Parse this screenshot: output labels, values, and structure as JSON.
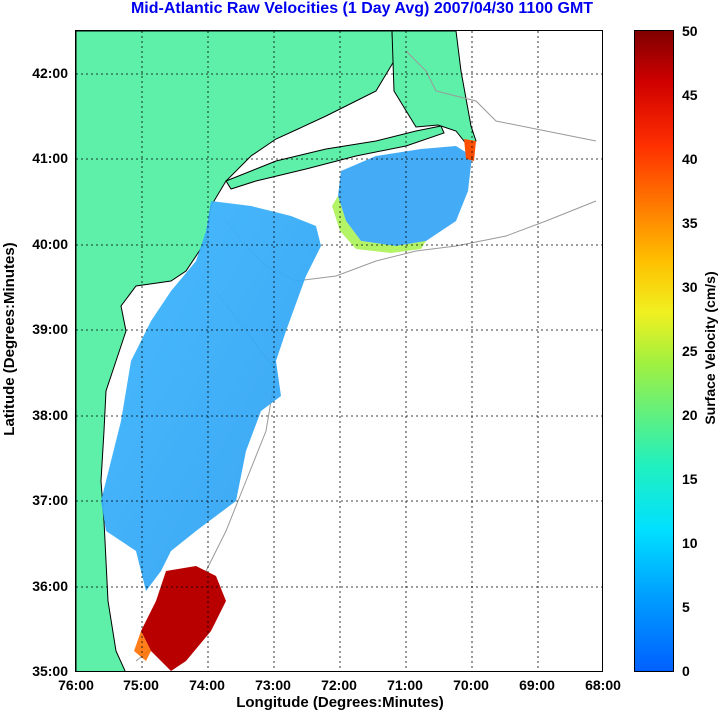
{
  "title": "Mid-Atlantic Raw Velocities (1 Day Avg) 2007/04/30 1100 GMT",
  "x_axis": {
    "label": "Longitude (Degrees:Minutes)",
    "ticks": [
      "76:00",
      "75:00",
      "74:00",
      "73:00",
      "72:00",
      "71:00",
      "70:00",
      "69:00",
      "68:00"
    ]
  },
  "y_axis": {
    "label": "Latitude (Degrees:Minutes)",
    "ticks": [
      "42:00",
      "41:00",
      "40:00",
      "39:00",
      "38:00",
      "37:00",
      "36:00",
      "35:00"
    ]
  },
  "colorbar": {
    "label": "Surface Velocity (cm/s)",
    "ticks": [
      "50",
      "45",
      "40",
      "35",
      "30",
      "25",
      "20",
      "15",
      "10",
      "5",
      "0"
    ],
    "range": [
      0,
      50
    ]
  },
  "colors": {
    "land": "#5ef0a8",
    "coast": "#000000",
    "bathymetry": "#9a9a9a",
    "title": "#0000ee",
    "grid": "#000000"
  }
}
